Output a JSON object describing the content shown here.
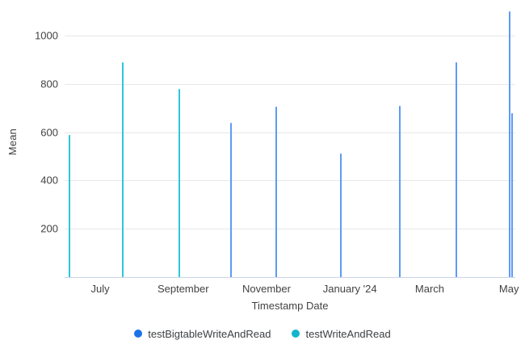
{
  "chart_data": {
    "type": "bar",
    "title": "",
    "xlabel": "Timestamp Date",
    "ylabel": "Mean",
    "ylim": [
      0,
      1120
    ],
    "grid": true,
    "legend_position": "bottom",
    "y_ticks": [
      200,
      400,
      600,
      800,
      1000
    ],
    "x_ticks": [
      {
        "label": "July",
        "pos": 0.079
      },
      {
        "label": "September",
        "pos": 0.263
      },
      {
        "label": "November",
        "pos": 0.448
      },
      {
        "label": "January '24",
        "pos": 0.633
      },
      {
        "label": "March",
        "pos": 0.81
      },
      {
        "label": "May",
        "pos": 0.986
      }
    ],
    "series": [
      {
        "name": "testBigtableWriteAndRead",
        "color": "#1a73e8",
        "line_color": "#5c9bf5",
        "points": [
          {
            "pos": 0.369,
            "value": 640
          },
          {
            "pos": 0.47,
            "value": 705
          },
          {
            "pos": 0.613,
            "value": 510
          },
          {
            "pos": 0.744,
            "value": 710
          },
          {
            "pos": 0.869,
            "value": 890
          },
          {
            "pos": 0.988,
            "value": 1100
          },
          {
            "pos": 0.992,
            "value": 680
          }
        ]
      },
      {
        "name": "testWriteAndRead",
        "color": "#12b5cb",
        "line_color": "#2ec6d8",
        "points": [
          {
            "pos": 0.011,
            "value": 590
          },
          {
            "pos": 0.129,
            "value": 890
          },
          {
            "pos": 0.254,
            "value": 780
          }
        ]
      }
    ]
  }
}
